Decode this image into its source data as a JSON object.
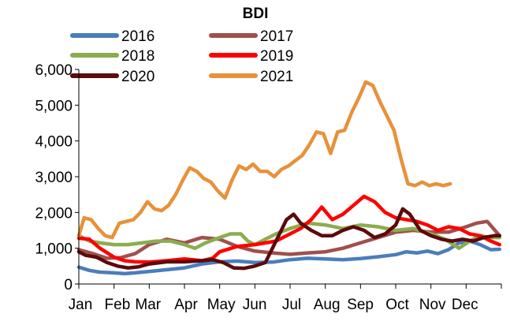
{
  "chart_data": {
    "type": "line",
    "title": "BDI",
    "xlabel": "",
    "ylabel": "",
    "ylim": [
      0,
      6000
    ],
    "yticks": [
      0,
      1000,
      2000,
      3000,
      4000,
      5000,
      6000
    ],
    "ytick_labels": [
      "0",
      "1,000",
      "2,000",
      "3,000",
      "4,000",
      "5,000",
      "6,000"
    ],
    "x_unit": "month index (0 = start of Jan, 12 = end of Dec)",
    "xlim": [
      0,
      12
    ],
    "categories": [
      "Jan",
      "Feb",
      "Mar",
      "Apr",
      "May",
      "Jun",
      "Jul",
      "Aug",
      "Sep",
      "Oct",
      "Nov",
      "Dec"
    ],
    "category_positions": [
      0,
      1.05,
      1.92,
      3.0,
      4.0,
      4.95,
      6.0,
      7.0,
      7.95,
      9.0,
      10.0,
      10.92
    ],
    "legend_position": "top",
    "grid": false,
    "series": [
      {
        "name": "2016",
        "color": "#4a7ebb",
        "x": [
          0,
          0.3,
          0.6,
          1,
          1.3,
          1.6,
          2,
          2.5,
          3,
          3.5,
          4,
          4.5,
          5,
          5.5,
          6,
          6.5,
          7,
          7.5,
          8,
          8.5,
          9,
          9.3,
          9.6,
          9.9,
          10.2,
          10.5,
          10.8,
          11.1,
          11.4,
          11.7,
          11.95
        ],
        "values": [
          470,
          380,
          330,
          310,
          290,
          310,
          350,
          400,
          450,
          560,
          620,
          640,
          600,
          610,
          680,
          720,
          700,
          680,
          710,
          760,
          820,
          900,
          870,
          920,
          850,
          960,
          1150,
          1200,
          1100,
          960,
          970
        ]
      },
      {
        "name": "2017",
        "color": "#a0504c",
        "x": [
          0,
          0.4,
          0.8,
          1.2,
          1.6,
          2,
          2.5,
          3,
          3.5,
          4,
          4.5,
          5,
          5.5,
          6,
          6.5,
          7,
          7.5,
          8,
          8.5,
          9,
          9.5,
          10,
          10.5,
          11,
          11.3,
          11.6,
          11.95
        ],
        "values": [
          960,
          850,
          720,
          740,
          850,
          1100,
          1250,
          1150,
          1300,
          1250,
          1050,
          920,
          870,
          830,
          870,
          900,
          1000,
          1150,
          1300,
          1450,
          1500,
          1450,
          1450,
          1600,
          1700,
          1750,
          1350
        ]
      },
      {
        "name": "2018",
        "color": "#8aad4f",
        "x": [
          0,
          0.3,
          0.6,
          1,
          1.4,
          1.8,
          2.2,
          2.6,
          3,
          3.3,
          3.6,
          4,
          4.3,
          4.6,
          4.8,
          5,
          5.3,
          5.6,
          6,
          6.5,
          7,
          7.5,
          8,
          8.5,
          9,
          9.5,
          10,
          10.4,
          10.8,
          11.1,
          11.4,
          11.7,
          11.95
        ],
        "values": [
          1350,
          1200,
          1150,
          1100,
          1100,
          1150,
          1200,
          1200,
          1100,
          1000,
          1150,
          1300,
          1400,
          1400,
          1200,
          1100,
          1250,
          1400,
          1550,
          1700,
          1650,
          1550,
          1650,
          1600,
          1500,
          1550,
          1400,
          1250,
          1000,
          1200,
          1350,
          1300,
          1300
        ]
      },
      {
        "name": "2019",
        "color": "#ff0000",
        "x": [
          0,
          0.3,
          0.6,
          1,
          1.3,
          1.6,
          2,
          2.5,
          3,
          3.5,
          3.8,
          4,
          4.5,
          5,
          5.3,
          5.6,
          6,
          6.3,
          6.6,
          6.9,
          7.2,
          7.5,
          7.8,
          8.1,
          8.4,
          8.7,
          9,
          9.3,
          9.6,
          9.9,
          10.2,
          10.5,
          10.8,
          11.1,
          11.4,
          11.7,
          11.95
        ],
        "values": [
          1280,
          1250,
          1000,
          750,
          650,
          620,
          610,
          650,
          700,
          650,
          720,
          900,
          1050,
          1100,
          1150,
          1200,
          1400,
          1550,
          1800,
          2150,
          1800,
          1950,
          2200,
          2450,
          2300,
          2000,
          1850,
          1800,
          1750,
          1650,
          1500,
          1600,
          1550,
          1400,
          1350,
          1200,
          1100
        ]
      },
      {
        "name": "2020",
        "color": "#5c0a0a",
        "x": [
          0,
          0.2,
          0.5,
          0.8,
          1.1,
          1.4,
          1.7,
          2,
          2.5,
          3,
          3.5,
          3.8,
          4.1,
          4.4,
          4.7,
          5,
          5.3,
          5.6,
          5.9,
          6.1,
          6.3,
          6.6,
          6.9,
          7.2,
          7.5,
          7.8,
          8.1,
          8.4,
          8.7,
          9,
          9.2,
          9.4,
          9.7,
          10,
          10.3,
          10.6,
          10.9,
          11.2,
          11.5,
          11.8,
          11.95
        ],
        "values": [
          900,
          800,
          750,
          600,
          500,
          450,
          480,
          560,
          620,
          620,
          650,
          680,
          600,
          450,
          440,
          500,
          600,
          1200,
          1800,
          1950,
          1700,
          1500,
          1350,
          1350,
          1500,
          1600,
          1500,
          1300,
          1400,
          1650,
          2100,
          1950,
          1500,
          1350,
          1250,
          1200,
          1250,
          1200,
          1300,
          1350,
          1350
        ]
      },
      {
        "name": "2021",
        "color": "#e8913a",
        "x": [
          0,
          0.15,
          0.35,
          0.55,
          0.75,
          0.95,
          1.15,
          1.35,
          1.55,
          1.75,
          1.95,
          2.15,
          2.35,
          2.55,
          2.75,
          2.95,
          3.15,
          3.35,
          3.55,
          3.75,
          3.95,
          4.15,
          4.35,
          4.55,
          4.75,
          4.95,
          5.15,
          5.35,
          5.55,
          5.75,
          5.95,
          6.15,
          6.35,
          6.55,
          6.75,
          6.95,
          7.15,
          7.35,
          7.55,
          7.75,
          7.95,
          8.15,
          8.35,
          8.55,
          8.75,
          8.95,
          9.15,
          9.35,
          9.55,
          9.75,
          9.95,
          10.15,
          10.35,
          10.55
        ],
        "values": [
          1350,
          1850,
          1800,
          1550,
          1350,
          1300,
          1700,
          1750,
          1800,
          2000,
          2300,
          2100,
          2050,
          2200,
          2500,
          2900,
          3250,
          3150,
          2950,
          2850,
          2600,
          2400,
          2900,
          3300,
          3200,
          3350,
          3150,
          3150,
          3000,
          3200,
          3300,
          3450,
          3600,
          3900,
          4250,
          4200,
          3650,
          4250,
          4300,
          4800,
          5200,
          5650,
          5550,
          5100,
          4700,
          4300,
          3500,
          2800,
          2750,
          2850,
          2750,
          2800,
          2750,
          2800
        ]
      }
    ]
  }
}
